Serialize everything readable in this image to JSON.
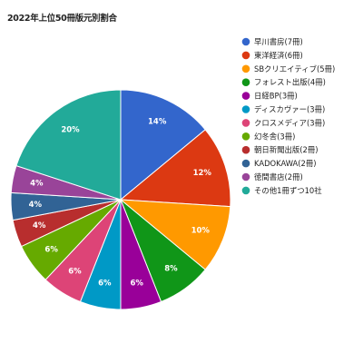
{
  "chart_data": {
    "type": "pie",
    "title": "2022年上位50冊版元別割合",
    "legend_position": "right",
    "slices": [
      {
        "label": "早川書房(7冊)",
        "value": 14,
        "value_label": "14%",
        "color": "#3366cc"
      },
      {
        "label": "東洋経済(6冊)",
        "value": 12,
        "value_label": "12%",
        "color": "#dc3912"
      },
      {
        "label": "SBクリエイティブ(5冊)",
        "value": 10,
        "value_label": "10%",
        "color": "#ff9900"
      },
      {
        "label": "フォレスト出版(4冊)",
        "value": 8,
        "value_label": "8%",
        "color": "#109618"
      },
      {
        "label": "日経BP(3冊)",
        "value": 6,
        "value_label": "6%",
        "color": "#990099"
      },
      {
        "label": "ディスカヴァー(3冊)",
        "value": 6,
        "value_label": "6%",
        "color": "#0099c6"
      },
      {
        "label": "クロスメディア(3冊)",
        "value": 6,
        "value_label": "6%",
        "color": "#dd4477"
      },
      {
        "label": "幻冬舎(3冊)",
        "value": 6,
        "value_label": "6%",
        "color": "#66aa00"
      },
      {
        "label": "朝日新聞出版(2冊)",
        "value": 4,
        "value_label": "4%",
        "color": "#b82e2e"
      },
      {
        "label": "KADOKAWA(2冊)",
        "value": 4,
        "value_label": "4%",
        "color": "#316395"
      },
      {
        "label": "徳間書店(2冊)",
        "value": 4,
        "value_label": "4%",
        "color": "#994499"
      },
      {
        "label": "その他1冊ずつ10社",
        "value": 20,
        "value_label": "20%",
        "color": "#22aa99"
      }
    ]
  }
}
